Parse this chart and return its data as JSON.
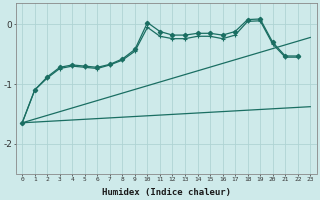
{
  "xlabel": "Humidex (Indice chaleur)",
  "background_color": "#ceeaea",
  "line_color": "#1a6e62",
  "grid_color": "#afd4d4",
  "x_ticks": [
    0,
    1,
    2,
    3,
    4,
    5,
    6,
    7,
    8,
    9,
    10,
    11,
    12,
    13,
    14,
    15,
    16,
    17,
    18,
    19,
    20,
    21,
    22,
    23
  ],
  "y_ticks": [
    0,
    -1,
    -2
  ],
  "ylim": [
    -2.5,
    0.35
  ],
  "xlim": [
    -0.5,
    23.5
  ],
  "line1_x": [
    0,
    1,
    2,
    3,
    4,
    5,
    6,
    7,
    8,
    9,
    10,
    11,
    12,
    13,
    14,
    15,
    16,
    17,
    18,
    19,
    20,
    21,
    22
  ],
  "line1_y": [
    -1.65,
    -1.1,
    -0.88,
    -0.72,
    -0.68,
    -0.7,
    -0.72,
    -0.67,
    -0.58,
    -0.42,
    0.03,
    -0.12,
    -0.18,
    -0.18,
    -0.15,
    -0.15,
    -0.18,
    -0.12,
    0.08,
    0.09,
    -0.3,
    -0.53,
    -0.53
  ],
  "line2_x": [
    0,
    1,
    2,
    3,
    4,
    5,
    6,
    7,
    8,
    9,
    10,
    11,
    12,
    13,
    14,
    15,
    16,
    17,
    18,
    19,
    20,
    21,
    22
  ],
  "line2_y": [
    -1.65,
    -1.1,
    -0.9,
    -0.74,
    -0.7,
    -0.72,
    -0.74,
    -0.68,
    -0.6,
    -0.45,
    -0.05,
    -0.2,
    -0.24,
    -0.24,
    -0.2,
    -0.2,
    -0.24,
    -0.18,
    0.05,
    0.06,
    -0.33,
    -0.55,
    -0.55
  ],
  "line3_x": [
    0,
    23
  ],
  "line3_y": [
    -1.65,
    -1.38
  ],
  "line4_x": [
    0,
    23
  ],
  "line4_y": [
    -1.65,
    -0.22
  ]
}
